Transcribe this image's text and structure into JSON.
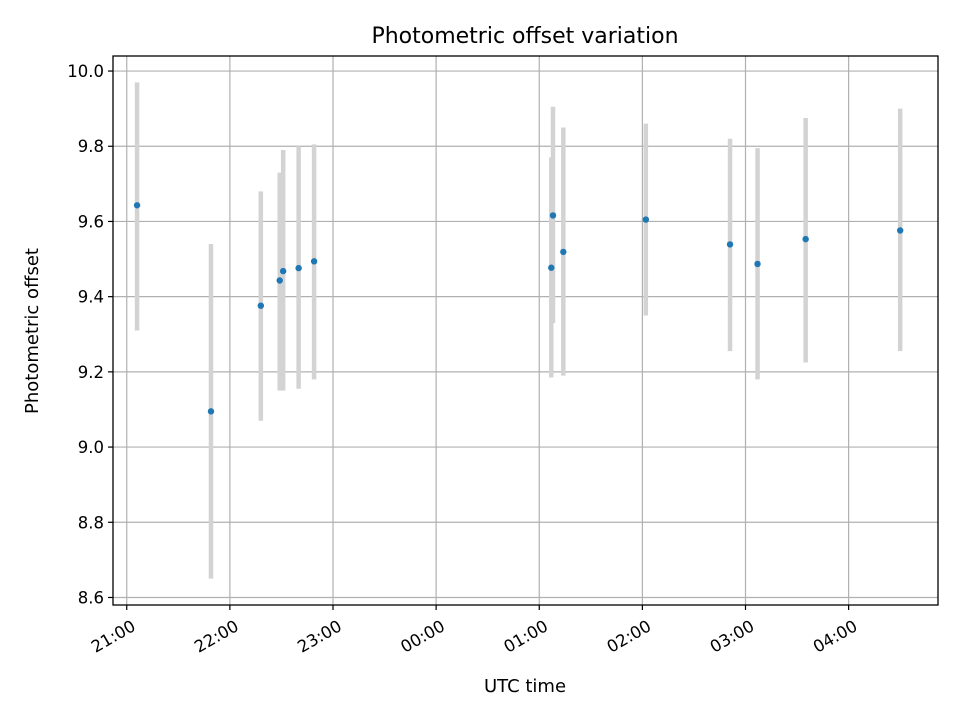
{
  "chart_data": {
    "type": "scatter",
    "title": "Photometric offset variation",
    "xlabel": "UTC time",
    "ylabel": "Photometric offset",
    "grid": true,
    "x_range": [
      "20:52",
      "04:52"
    ],
    "ylim": [
      8.58,
      10.04
    ],
    "x_ticks": [
      "21:00",
      "22:00",
      "23:00",
      "00:00",
      "01:00",
      "02:00",
      "03:00",
      "04:00"
    ],
    "y_ticks": [
      "8.6",
      "8.8",
      "9.0",
      "9.2",
      "9.4",
      "9.6",
      "9.8",
      "10.0"
    ],
    "colors": {
      "marker": "#1f77b4",
      "errorbar": "#d3d3d3",
      "grid": "#b0b0b0"
    },
    "points": [
      {
        "time": "21:06",
        "y": 9.643,
        "ylow": 9.31,
        "yhigh": 9.97
      },
      {
        "time": "21:49",
        "y": 9.095,
        "ylow": 8.65,
        "yhigh": 9.54
      },
      {
        "time": "22:18",
        "y": 9.376,
        "ylow": 9.07,
        "yhigh": 9.68
      },
      {
        "time": "22:29",
        "y": 9.443,
        "ylow": 9.15,
        "yhigh": 9.73
      },
      {
        "time": "22:31",
        "y": 9.468,
        "ylow": 9.15,
        "yhigh": 9.79
      },
      {
        "time": "22:40",
        "y": 9.476,
        "ylow": 9.155,
        "yhigh": 9.8
      },
      {
        "time": "22:49",
        "y": 9.494,
        "ylow": 9.18,
        "yhigh": 9.805
      },
      {
        "time": "01:07",
        "y": 9.477,
        "ylow": 9.185,
        "yhigh": 9.77
      },
      {
        "time": "01:08",
        "y": 9.616,
        "ylow": 9.33,
        "yhigh": 9.905
      },
      {
        "time": "01:14",
        "y": 9.519,
        "ylow": 9.19,
        "yhigh": 9.85
      },
      {
        "time": "02:02",
        "y": 9.605,
        "ylow": 9.35,
        "yhigh": 9.86
      },
      {
        "time": "02:51",
        "y": 9.539,
        "ylow": 9.255,
        "yhigh": 9.82
      },
      {
        "time": "03:07",
        "y": 9.487,
        "ylow": 9.18,
        "yhigh": 9.795
      },
      {
        "time": "03:35",
        "y": 9.553,
        "ylow": 9.225,
        "yhigh": 9.875
      },
      {
        "time": "04:30",
        "y": 9.576,
        "ylow": 9.255,
        "yhigh": 9.9
      }
    ]
  }
}
